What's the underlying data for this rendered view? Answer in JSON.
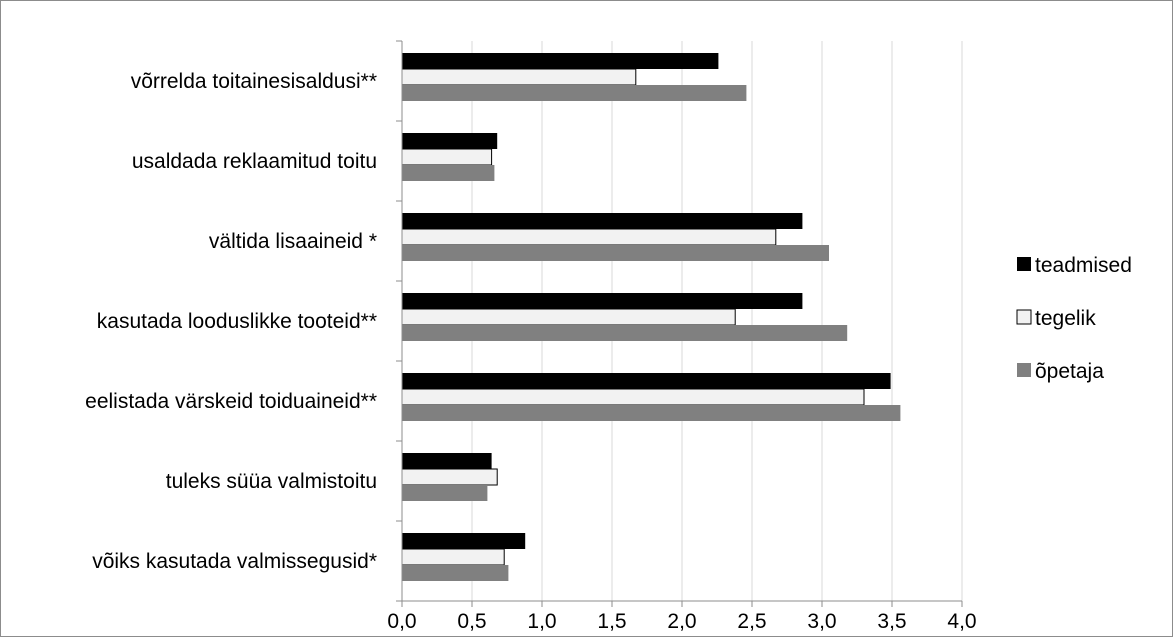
{
  "chart_data": {
    "type": "bar",
    "orientation": "horizontal",
    "title": "",
    "xlabel": "",
    "ylabel": "",
    "categories": [
      "võrrelda toitainesisaldusi**",
      "usaldada reklaamitud toitu",
      "vältida lisaaineid *",
      "kasutada looduslikke tooteid**",
      "eelistada värskeid toiduaineid**",
      "tuleks süüa valmistoitu",
      "võiks kasutada valmissegusid*"
    ],
    "series": [
      {
        "name": "teadmised",
        "color": "#000000",
        "values": [
          2.26,
          0.68,
          2.86,
          2.86,
          3.49,
          0.64,
          0.88
        ]
      },
      {
        "name": "tegelik",
        "color": "#f2f2f2",
        "values": [
          1.67,
          0.64,
          2.67,
          2.38,
          3.3,
          0.68,
          0.73
        ]
      },
      {
        "name": "õpetaja",
        "color": "#808080",
        "values": [
          2.46,
          0.66,
          3.05,
          3.18,
          3.56,
          0.61,
          0.76
        ]
      }
    ],
    "xlim": [
      0,
      4.0
    ],
    "xticks": [
      "0,0",
      "0,5",
      "1,0",
      "1,5",
      "2,0",
      "2,5",
      "3,0",
      "3,5",
      "4,0"
    ],
    "grid": "vertical",
    "legend_position": "right"
  }
}
